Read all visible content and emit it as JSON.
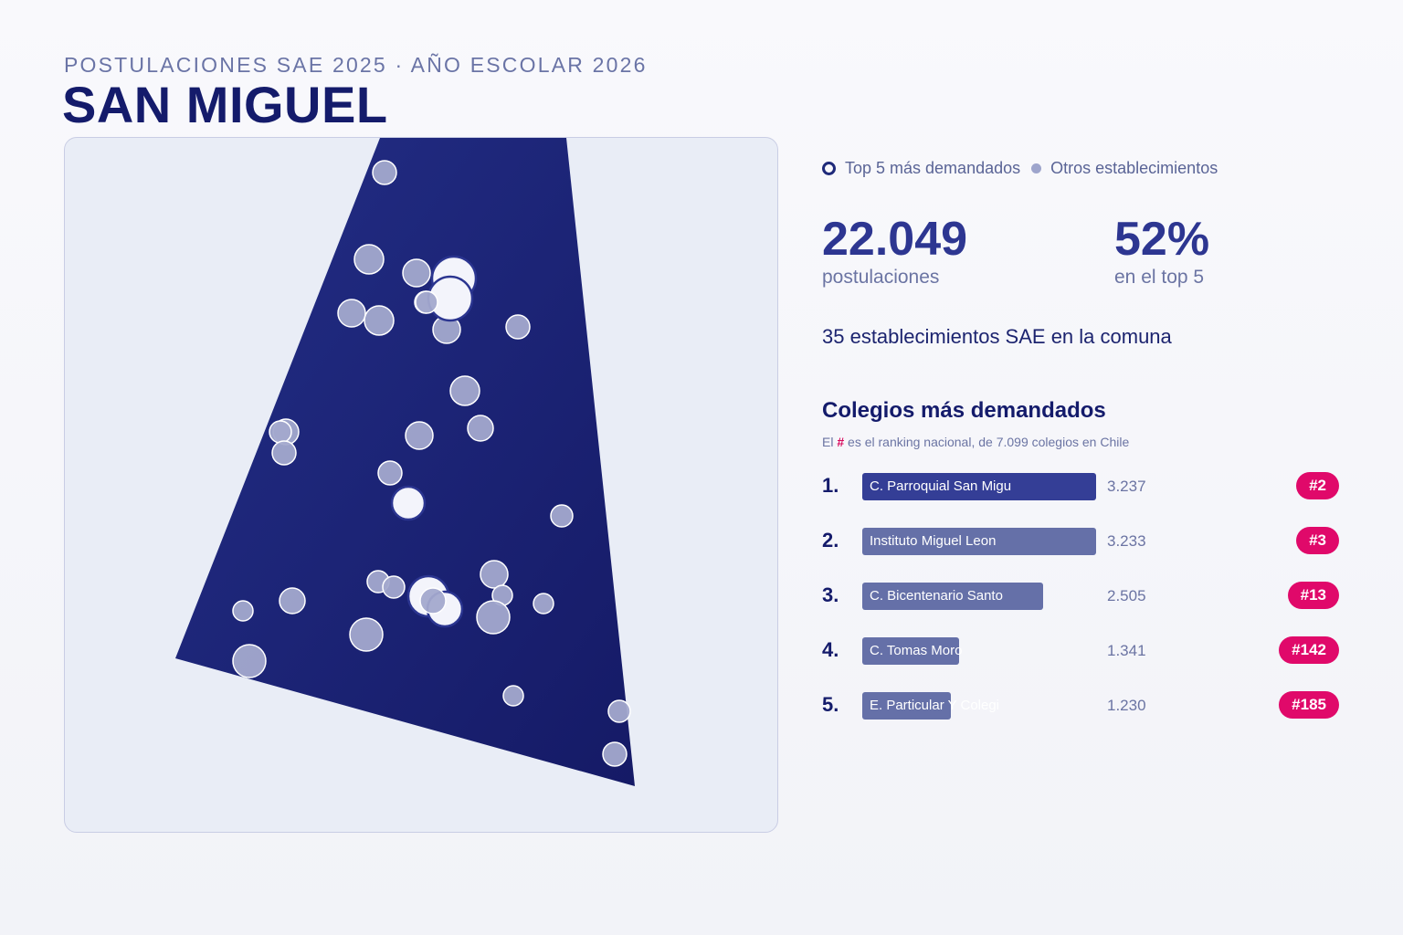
{
  "header": {
    "subtitle": "POSTULACIONES SAE 2025 · AÑO ESCOLAR 2026",
    "title": "SAN MIGUEL"
  },
  "legend": {
    "top5_label": "Top 5 más demandados",
    "others_label": "Otros establecimientos"
  },
  "stats": {
    "postulaciones_value": "22.049",
    "postulaciones_label": "postulaciones",
    "top5_share_value": "52%",
    "top5_share_label": "en el top 5"
  },
  "count_line": "35 establecimientos SAE en la comuna",
  "ranking": {
    "title": "Colegios más demandados",
    "note_prefix": "El",
    "note_hash": "#",
    "note_suffix": "es el ranking nacional, de 7.099 colegios en Chile",
    "max_value": 3237,
    "items": [
      {
        "rank": "1.",
        "name": "C. Parroquial San Migu",
        "value": 3237,
        "value_label": "3.237",
        "national_rank": "#2"
      },
      {
        "rank": "2.",
        "name": "Instituto Miguel Leon",
        "value": 3233,
        "value_label": "3.233",
        "national_rank": "#3"
      },
      {
        "rank": "3.",
        "name": "C. Bicentenario Santo",
        "value": 2505,
        "value_label": "2.505",
        "national_rank": "#13"
      },
      {
        "rank": "4.",
        "name": "C. Tomas Moro",
        "value": 1341,
        "value_label": "1.341",
        "national_rank": "#142"
      },
      {
        "rank": "5.",
        "name": "E. Particular Y Colegi",
        "value": 1230,
        "value_label": "1.230",
        "national_rank": "#185"
      }
    ]
  },
  "colors": {
    "commune_fill": "#1e2678",
    "top5_fill": "#f3f4fb",
    "top5_stroke": "#2b3590",
    "other_fill": "#a3a9cd",
    "badge": "#e0096a"
  }
}
